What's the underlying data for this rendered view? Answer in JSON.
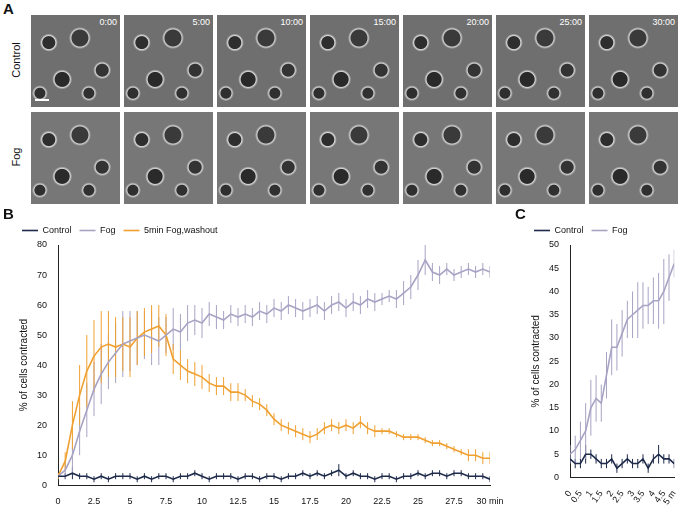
{
  "panel_labels": [
    "A",
    "B",
    "C"
  ],
  "images": {
    "rows": [
      "Control",
      "Fog"
    ],
    "times": [
      "0:00",
      "5:00",
      "10:00",
      "15:00",
      "20:00",
      "25:00",
      "30:00"
    ]
  },
  "chart_data": [
    {
      "type": "line",
      "y_label": "% of cells contracted",
      "legend": "top",
      "grid": false,
      "xlim": [
        0,
        30
      ],
      "xticks": [
        0,
        2.5,
        5,
        7.5,
        10,
        12.5,
        15,
        17.5,
        20,
        22.5,
        25,
        27.5,
        {
          "value": 30,
          "label": "30 min"
        }
      ],
      "ylim": [
        0,
        80
      ],
      "yticks": [
        0,
        10,
        20,
        30,
        40,
        50,
        60,
        70,
        80
      ],
      "x": [
        0,
        0.5,
        1,
        1.5,
        2,
        2.5,
        3,
        3.5,
        4,
        4.5,
        5,
        5.5,
        6,
        6.5,
        7,
        7.5,
        8,
        8.5,
        9,
        9.5,
        10,
        10.5,
        11,
        11.5,
        12,
        12.5,
        13,
        13.5,
        14,
        14.5,
        15,
        15.5,
        16,
        16.5,
        17,
        17.5,
        18,
        18.5,
        19,
        19.5,
        20,
        20.5,
        21,
        21.5,
        22,
        22.5,
        23,
        23.5,
        24,
        24.5,
        25,
        25.5,
        26,
        26.5,
        27,
        27.5,
        28,
        28.5,
        29,
        29.5,
        30
      ],
      "series": [
        {
          "name": "Control",
          "color": "#1e2a4a",
          "values": [
            3,
            3,
            4,
            3,
            3,
            2,
            3,
            2,
            3,
            3,
            3,
            2,
            3,
            2,
            3,
            3,
            2,
            3,
            3,
            4,
            3,
            2,
            3,
            3,
            3,
            2,
            3,
            3,
            2,
            3,
            3,
            2,
            3,
            3,
            4,
            3,
            4,
            3,
            4,
            5,
            3,
            4,
            3,
            3,
            2,
            3,
            3,
            2,
            3,
            3,
            4,
            3,
            4,
            4,
            3,
            4,
            4,
            3,
            3,
            3,
            2
          ],
          "errors": [
            1,
            1,
            2,
            1,
            1,
            1,
            1,
            1,
            1,
            1,
            1,
            1,
            1,
            1,
            1,
            1,
            1,
            1,
            1,
            1,
            1,
            1,
            1,
            1,
            1,
            1,
            1,
            1,
            1,
            1,
            1,
            1,
            1,
            1,
            1,
            1,
            1,
            1,
            1,
            2,
            1,
            1,
            1,
            1,
            1,
            1,
            1,
            1,
            1,
            1,
            1,
            1,
            1,
            1,
            1,
            1,
            1,
            1,
            1,
            1,
            1
          ]
        },
        {
          "name": "Fog",
          "color": "#a7a3c4",
          "values": [
            3,
            5,
            10,
            18,
            25,
            32,
            37,
            41,
            44,
            47,
            48,
            49,
            50,
            49,
            48,
            50,
            52,
            51,
            54,
            55,
            54,
            57,
            56,
            55,
            57,
            56,
            57,
            56,
            58,
            57,
            59,
            58,
            60,
            59,
            58,
            59,
            60,
            58,
            60,
            61,
            59,
            61,
            60,
            62,
            61,
            62,
            63,
            62,
            64,
            66,
            70,
            75,
            71,
            70,
            72,
            70,
            71,
            72,
            71,
            72,
            71
          ],
          "errors": [
            1,
            3,
            6,
            8,
            9,
            9,
            10,
            9,
            10,
            11,
            10,
            9,
            8,
            9,
            8,
            6,
            7,
            6,
            6,
            5,
            5,
            4,
            4,
            3,
            3,
            3,
            3,
            3,
            3,
            3,
            3,
            3,
            3,
            3,
            3,
            3,
            3,
            3,
            3,
            3,
            3,
            3,
            3,
            3,
            3,
            2,
            2,
            3,
            4,
            4,
            5,
            5,
            3,
            3,
            2,
            2,
            2,
            2,
            2,
            2,
            2
          ]
        },
        {
          "name": "5min Fog,washout",
          "color": "#f0a030",
          "values": [
            3,
            8,
            20,
            30,
            38,
            43,
            46,
            47,
            46,
            47,
            46,
            49,
            51,
            52,
            53,
            50,
            42,
            40,
            38,
            37,
            36,
            34,
            33,
            33,
            31,
            31,
            30,
            28,
            27,
            25,
            22,
            20,
            19,
            18,
            17,
            16,
            17,
            19,
            20,
            19,
            20,
            19,
            21,
            19,
            18,
            18,
            18,
            17,
            16,
            16,
            16,
            15,
            14,
            14,
            13,
            12,
            11,
            10,
            10,
            9,
            9
          ],
          "errors": [
            1,
            3,
            8,
            10,
            12,
            12,
            12,
            11,
            10,
            9,
            10,
            9,
            8,
            8,
            7,
            7,
            5,
            5,
            4,
            4,
            4,
            3,
            3,
            3,
            3,
            3,
            2,
            2,
            2,
            2,
            2,
            2,
            2,
            2,
            2,
            2,
            2,
            2,
            2,
            2,
            2,
            2,
            2,
            2,
            2,
            1,
            1,
            1,
            1,
            1,
            1,
            1,
            1,
            1,
            1,
            1,
            1,
            2,
            2,
            2,
            2
          ]
        }
      ]
    },
    {
      "type": "line",
      "y_label": "% of cells contracted",
      "legend": "top",
      "grid": false,
      "xlim": [
        0,
        5
      ],
      "xticks": [
        0,
        0.5,
        1,
        1.5,
        2,
        2.5,
        3,
        3.5,
        4,
        4.5,
        {
          "value": 5,
          "label": "5 m"
        }
      ],
      "ylim": [
        0,
        50
      ],
      "yticks": [
        0,
        5,
        10,
        15,
        20,
        25,
        30,
        35,
        40,
        45,
        50
      ],
      "x": [
        0,
        0.25,
        0.5,
        0.75,
        1,
        1.25,
        1.5,
        1.75,
        2,
        2.25,
        2.5,
        2.75,
        3,
        3.25,
        3.5,
        3.75,
        4,
        4.25,
        4.5,
        4.75,
        5
      ],
      "series": [
        {
          "name": "Control",
          "color": "#1e2a4a",
          "values": [
            4,
            3,
            3,
            5,
            5,
            4,
            3,
            3,
            4,
            2,
            3,
            4,
            3,
            3,
            4,
            2,
            4,
            5,
            4,
            4,
            3
          ],
          "errors": [
            1,
            1,
            1,
            2,
            1,
            1,
            1,
            1,
            1,
            1,
            1,
            1,
            1,
            1,
            1,
            1,
            1,
            2,
            1,
            1,
            1
          ]
        },
        {
          "name": "Fog",
          "color": "#a7a3c4",
          "values": [
            5,
            6,
            8,
            10,
            15,
            17,
            16,
            22,
            28,
            28,
            31,
            34,
            35,
            36,
            37,
            37,
            38,
            38,
            40,
            43,
            46
          ],
          "errors": [
            2,
            3,
            4,
            6,
            6,
            5,
            4,
            5,
            6,
            5,
            5,
            4,
            5,
            6,
            5,
            4,
            5,
            6,
            7,
            5,
            3
          ]
        }
      ]
    }
  ]
}
